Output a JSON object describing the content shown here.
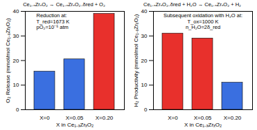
{
  "chart_data": [
    {
      "type": "bar",
      "title": "Ce₁₋ₓZrₓO₂ → Ce₁₋ₓZrₓO₂₋δred + O₂",
      "x_label": "X in Ce₁₋ₓZrₓO₂",
      "y_label": "O₂ Release (mmol/mol Ce₁₋ₓZrₓO₂)",
      "categories": [
        "X=0",
        "X=0.05",
        "X=0.20"
      ],
      "values": [
        15.5,
        20.5,
        39
      ],
      "colors": [
        "#3a6fe0",
        "#3a6fe0",
        "#e8302c"
      ],
      "ylim": [
        0,
        40
      ],
      "yticks": [
        0,
        10,
        20,
        30,
        40
      ],
      "annotations": [
        "Reduction at:",
        "T_red=1673 K",
        "pO₂=10⁻⁵ atm"
      ]
    },
    {
      "type": "bar",
      "title": "Ce₁₋ₓZrₓO₂₋δred + H₂O → Ce₁₋ₓZrₓO₂ + H₂",
      "x_label": "X in Ce₁₋ₓZrₓO₂",
      "y_label": "H₂ Productivity (mmol/mol Ce₁₋ₓZrₓO₂)",
      "categories": [
        "X=0",
        "X=0.05",
        "X=0.20"
      ],
      "values": [
        31,
        29,
        11
      ],
      "colors": [
        "#e8302c",
        "#e8302c",
        "#3a6fe0"
      ],
      "ylim": [
        0,
        40
      ],
      "yticks": [
        0,
        10,
        20,
        30,
        40
      ],
      "annotations": [
        "Subsequent oxidation with H₂O at:",
        "T_ox=1000 K",
        "n_H₂O=2δ_red"
      ]
    }
  ]
}
